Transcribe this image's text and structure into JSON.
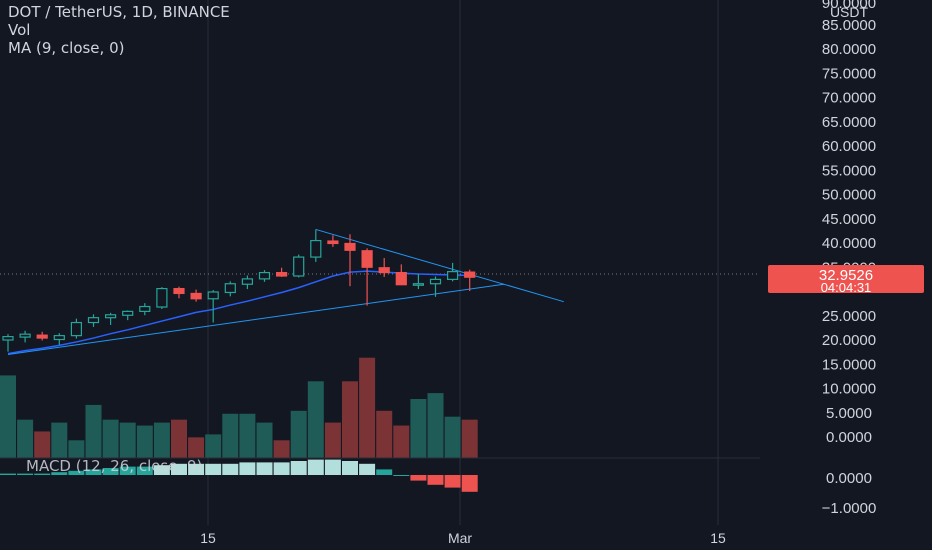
{
  "legend": {
    "symbol_line": "DOT / TetherUS, 1D, BINANCE",
    "vol_label": "Vol",
    "ma_label": "MA (9, close, 0)"
  },
  "price_axis": {
    "currency": "USDT",
    "top_label": "90.0000",
    "labels": [
      "85.0000",
      "80.0000",
      "75.0000",
      "70.0000",
      "65.0000",
      "60.0000",
      "55.0000",
      "50.0000",
      "45.0000",
      "40.0000",
      "35.0000",
      "25.0000",
      "20.0000",
      "15.0000",
      "10.0000",
      "5.0000",
      "0.0000"
    ]
  },
  "current_price": {
    "value": "32.9526",
    "countdown": "04:04:31",
    "price": 32.9526
  },
  "macd": {
    "label": "MACD (12, 26, close, 9)",
    "axis_labels": [
      "0.0000",
      "−1.0000"
    ]
  },
  "time_axis": {
    "labels": [
      "15",
      "Mar",
      "15"
    ]
  },
  "colors": {
    "background": "#131722",
    "up": "#26a69a",
    "down": "#ef5350",
    "vol_up": "#1f5c57",
    "vol_down": "#7c3336",
    "ma_line": "#2962ff",
    "trendline": "#2196f3",
    "grid": "#2a2e39",
    "text": "#d1d4dc",
    "macd_pos": "#26a69a",
    "macd_pos_light": "#b2dfdb",
    "macd_neg": "#ef5350"
  },
  "chart_data": {
    "type": "candlestick",
    "title": "DOT / TetherUS, 1D, BINANCE",
    "ylim": [
      0,
      90
    ],
    "candles": [
      {
        "o": 20.0,
        "h": 21.2,
        "l": 17.6,
        "c": 20.7
      },
      {
        "o": 20.6,
        "h": 21.9,
        "l": 19.5,
        "c": 21.2
      },
      {
        "o": 21.0,
        "h": 21.7,
        "l": 19.9,
        "c": 20.4
      },
      {
        "o": 20.1,
        "h": 21.4,
        "l": 19.0,
        "c": 20.9
      },
      {
        "o": 20.9,
        "h": 24.4,
        "l": 20.3,
        "c": 23.6
      },
      {
        "o": 23.6,
        "h": 25.3,
        "l": 22.7,
        "c": 24.6
      },
      {
        "o": 24.6,
        "h": 25.6,
        "l": 23.1,
        "c": 25.2
      },
      {
        "o": 25.1,
        "h": 26.1,
        "l": 24.1,
        "c": 25.9
      },
      {
        "o": 25.9,
        "h": 27.6,
        "l": 25.1,
        "c": 26.9
      },
      {
        "o": 26.8,
        "h": 30.9,
        "l": 26.4,
        "c": 30.6
      },
      {
        "o": 30.6,
        "h": 31.0,
        "l": 28.6,
        "c": 29.6
      },
      {
        "o": 29.6,
        "h": 30.4,
        "l": 27.9,
        "c": 28.5
      },
      {
        "o": 28.5,
        "h": 30.3,
        "l": 23.6,
        "c": 29.9
      },
      {
        "o": 29.8,
        "h": 32.1,
        "l": 29.0,
        "c": 31.6
      },
      {
        "o": 31.5,
        "h": 33.3,
        "l": 30.5,
        "c": 32.6
      },
      {
        "o": 32.6,
        "h": 34.4,
        "l": 32.0,
        "c": 33.9
      },
      {
        "o": 33.9,
        "h": 34.9,
        "l": 33.0,
        "c": 33.2
      },
      {
        "o": 33.2,
        "h": 37.6,
        "l": 32.9,
        "c": 37.1
      },
      {
        "o": 37.1,
        "h": 42.8,
        "l": 36.1,
        "c": 40.5
      },
      {
        "o": 40.4,
        "h": 41.6,
        "l": 39.2,
        "c": 39.9
      },
      {
        "o": 39.9,
        "h": 41.8,
        "l": 31.1,
        "c": 38.5
      },
      {
        "o": 38.4,
        "h": 38.9,
        "l": 27.1,
        "c": 35.0
      },
      {
        "o": 34.9,
        "h": 36.9,
        "l": 33.0,
        "c": 33.9
      },
      {
        "o": 33.9,
        "h": 35.6,
        "l": 31.5,
        "c": 31.4
      },
      {
        "o": 31.4,
        "h": 33.7,
        "l": 30.5,
        "c": 31.6
      },
      {
        "o": 31.6,
        "h": 33.1,
        "l": 28.9,
        "c": 32.5
      },
      {
        "o": 32.5,
        "h": 35.9,
        "l": 32.1,
        "c": 34.1
      },
      {
        "o": 34.0,
        "h": 34.5,
        "l": 30.1,
        "c": 32.95
      }
    ],
    "volume": [
      14.0,
      6.5,
      4.5,
      6.0,
      3.0,
      9.0,
      6.5,
      6.0,
      5.5,
      6.0,
      6.5,
      3.5,
      4.0,
      7.5,
      7.5,
      6.0,
      3.0,
      8.0,
      13.0,
      6.0,
      13.0,
      17.0,
      8.0,
      5.5,
      10.0,
      11.0,
      7.0,
      6.5
    ],
    "macd_histogram": [
      0.05,
      0.05,
      0.05,
      0.1,
      0.15,
      0.2,
      0.25,
      0.3,
      0.3,
      0.35,
      0.4,
      0.4,
      0.4,
      0.4,
      0.45,
      0.45,
      0.45,
      0.5,
      0.55,
      0.55,
      0.5,
      0.4,
      0.2,
      0.0,
      -0.2,
      -0.35,
      -0.45,
      -0.6
    ],
    "ma_9": [
      17.2,
      17.8,
      18.3,
      18.9,
      19.6,
      20.4,
      21.3,
      22.1,
      23.0,
      23.9,
      24.8,
      25.7,
      26.3,
      27.2,
      28.0,
      28.9,
      29.8,
      30.8,
      32.0,
      33.2,
      34.0,
      34.2,
      34.0,
      33.8,
      33.6,
      33.5,
      33.4,
      33.3
    ],
    "trendlines": [
      {
        "name": "upper",
        "from": {
          "index": 18,
          "price": 42.8
        },
        "to": {
          "index": 32.5,
          "price": 27.9
        }
      },
      {
        "name": "lower",
        "from": {
          "index": 0,
          "price": 17.0
        },
        "to": {
          "index": 29,
          "price": 31.5
        }
      }
    ],
    "xlabels": [
      "15",
      "Mar",
      "15"
    ],
    "macd_ylim": [
      -1.5,
      1.0
    ]
  }
}
